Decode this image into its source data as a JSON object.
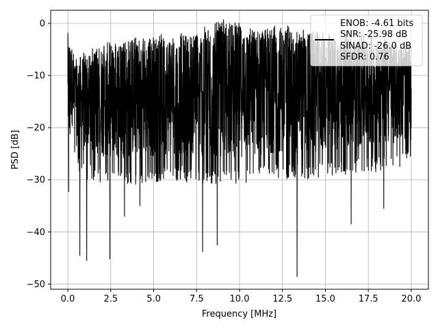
{
  "chart_data": {
    "type": "line",
    "title": "",
    "xlabel": "Frequency [MHz]",
    "ylabel": "PSD [dB]",
    "xlim": [
      -1.0,
      21.0
    ],
    "ylim": [
      -51.0,
      2.5
    ],
    "xticks": [
      0.0,
      2.5,
      5.0,
      7.5,
      10.0,
      12.5,
      15.0,
      17.5,
      20.0
    ],
    "xtick_labels": [
      "0.0",
      "2.5",
      "5.0",
      "7.5",
      "10.0",
      "12.5",
      "15.0",
      "17.5",
      "20.0"
    ],
    "yticks": [
      0,
      -10,
      -20,
      -30,
      -40,
      -50
    ],
    "ytick_labels": [
      "0",
      "−10",
      "−20",
      "−30",
      "−40",
      "−50"
    ],
    "grid": true,
    "legend_position": "top-right",
    "legend_lines": [
      "ENOB: -4.61 bits",
      "SNR: -25.98 dB",
      "SINAD: -26.0 dB",
      "SFDR: 0.76"
    ],
    "series": [
      {
        "color": "#000000",
        "x_range": [
          0.0,
          20.0
        ],
        "upper_envelope": [
          [
            0.0,
            -3.5
          ],
          [
            0.5,
            -8.5
          ],
          [
            1.0,
            -6.5
          ],
          [
            1.5,
            -5.5
          ],
          [
            2.5,
            -4.5
          ],
          [
            4.0,
            -3.0
          ],
          [
            6.0,
            -3.0
          ],
          [
            7.5,
            -2.0
          ],
          [
            9.2,
            0.2
          ],
          [
            10.8,
            -1.5
          ],
          [
            12.5,
            -1.0
          ],
          [
            14.3,
            -2.5
          ],
          [
            16.0,
            -3.0
          ],
          [
            18.0,
            -3.5
          ],
          [
            20.0,
            -5.0
          ]
        ],
        "lower_envelope": [
          [
            0.0,
            -20.0
          ],
          [
            0.5,
            -28.0
          ],
          [
            1.0,
            -30.0
          ],
          [
            2.0,
            -30.5
          ],
          [
            4.0,
            -31.0
          ],
          [
            6.0,
            -30.0
          ],
          [
            8.0,
            -31.0
          ],
          [
            10.0,
            -31.0
          ],
          [
            12.0,
            -30.0
          ],
          [
            14.0,
            -30.0
          ],
          [
            16.0,
            -29.0
          ],
          [
            18.0,
            -28.5
          ],
          [
            20.0,
            -27.0
          ]
        ],
        "deep_dips": [
          [
            0.05,
            -32.3
          ],
          [
            0.7,
            -44.5
          ],
          [
            1.1,
            -45.5
          ],
          [
            2.45,
            -45.2
          ],
          [
            3.3,
            -37.0
          ],
          [
            4.2,
            -35.0
          ],
          [
            7.85,
            -43.8
          ],
          [
            8.7,
            -42.5
          ],
          [
            13.35,
            -48.6
          ],
          [
            16.5,
            -38.5
          ],
          [
            18.4,
            -35.5
          ]
        ]
      }
    ]
  }
}
